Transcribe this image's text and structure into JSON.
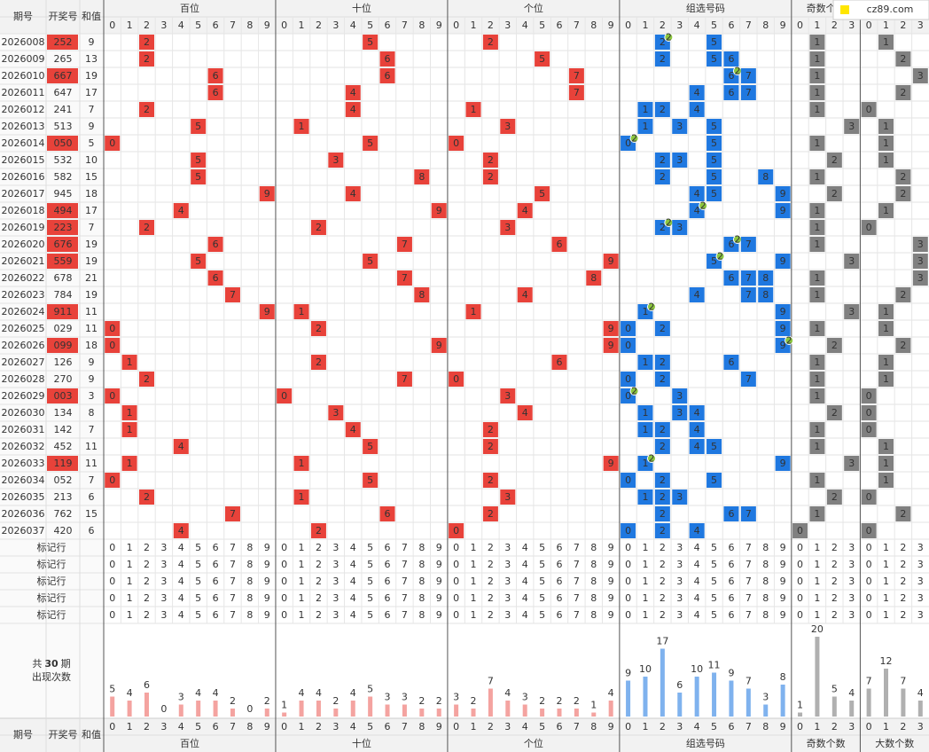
{
  "logo": "cz89.com",
  "headers": {
    "issue": "期号",
    "number": "开奖号",
    "sum": "和值"
  },
  "groups": [
    {
      "name": "百位",
      "counts": [
        5,
        4,
        6,
        0,
        3,
        4,
        4,
        2,
        0,
        2
      ]
    },
    {
      "name": "十位",
      "counts": [
        1,
        4,
        4,
        2,
        4,
        5,
        3,
        3,
        2,
        2
      ]
    },
    {
      "name": "个位",
      "counts": [
        3,
        2,
        7,
        4,
        3,
        2,
        2,
        2,
        1,
        4
      ]
    },
    {
      "name": "组选号码",
      "counts": [
        9,
        10,
        17,
        6,
        10,
        11,
        9,
        7,
        3,
        8
      ]
    },
    {
      "name": "奇数个数",
      "counts": [
        1,
        20,
        5,
        4
      ]
    },
    {
      "name": "大数个数",
      "counts": [
        7,
        12,
        7,
        4
      ]
    }
  ],
  "digit_labels": [
    0,
    1,
    2,
    3,
    4,
    5,
    6,
    7,
    8,
    9
  ],
  "count_labels": [
    0,
    1,
    2,
    3
  ],
  "pair_badge": "2",
  "rows": [
    {
      "issue": "2026008",
      "number": "252",
      "sum": 9,
      "digits": [
        2,
        5,
        2
      ],
      "odd": 1,
      "big": 1
    },
    {
      "issue": "2026009",
      "number": "265",
      "sum": 13,
      "digits": [
        2,
        6,
        5
      ],
      "odd": 1,
      "big": 2
    },
    {
      "issue": "2026010",
      "number": "667",
      "sum": 19,
      "digits": [
        6,
        6,
        7
      ],
      "odd": 1,
      "big": 3
    },
    {
      "issue": "2026011",
      "number": "647",
      "sum": 17,
      "digits": [
        6,
        4,
        7
      ],
      "odd": 1,
      "big": 2
    },
    {
      "issue": "2026012",
      "number": "241",
      "sum": 7,
      "digits": [
        2,
        4,
        1
      ],
      "odd": 1,
      "big": 0
    },
    {
      "issue": "2026013",
      "number": "513",
      "sum": 9,
      "digits": [
        5,
        1,
        3
      ],
      "odd": 3,
      "big": 1
    },
    {
      "issue": "2026014",
      "number": "050",
      "sum": 5,
      "digits": [
        0,
        5,
        0
      ],
      "odd": 1,
      "big": 1
    },
    {
      "issue": "2026015",
      "number": "532",
      "sum": 10,
      "digits": [
        5,
        3,
        2
      ],
      "odd": 2,
      "big": 1
    },
    {
      "issue": "2026016",
      "number": "582",
      "sum": 15,
      "digits": [
        5,
        8,
        2
      ],
      "odd": 1,
      "big": 2
    },
    {
      "issue": "2026017",
      "number": "945",
      "sum": 18,
      "digits": [
        9,
        4,
        5
      ],
      "odd": 2,
      "big": 2
    },
    {
      "issue": "2026018",
      "number": "494",
      "sum": 17,
      "digits": [
        4,
        9,
        4
      ],
      "odd": 1,
      "big": 1
    },
    {
      "issue": "2026019",
      "number": "223",
      "sum": 7,
      "digits": [
        2,
        2,
        3
      ],
      "odd": 1,
      "big": 0
    },
    {
      "issue": "2026020",
      "number": "676",
      "sum": 19,
      "digits": [
        6,
        7,
        6
      ],
      "odd": 1,
      "big": 3
    },
    {
      "issue": "2026021",
      "number": "559",
      "sum": 19,
      "digits": [
        5,
        5,
        9
      ],
      "odd": 3,
      "big": 3
    },
    {
      "issue": "2026022",
      "number": "678",
      "sum": 21,
      "digits": [
        6,
        7,
        8
      ],
      "odd": 1,
      "big": 3
    },
    {
      "issue": "2026023",
      "number": "784",
      "sum": 19,
      "digits": [
        7,
        8,
        4
      ],
      "odd": 1,
      "big": 2
    },
    {
      "issue": "2026024",
      "number": "911",
      "sum": 11,
      "digits": [
        9,
        1,
        1
      ],
      "odd": 3,
      "big": 1
    },
    {
      "issue": "2026025",
      "number": "029",
      "sum": 11,
      "digits": [
        0,
        2,
        9
      ],
      "odd": 1,
      "big": 1
    },
    {
      "issue": "2026026",
      "number": "099",
      "sum": 18,
      "digits": [
        0,
        9,
        9
      ],
      "odd": 2,
      "big": 2
    },
    {
      "issue": "2026027",
      "number": "126",
      "sum": 9,
      "digits": [
        1,
        2,
        6
      ],
      "odd": 1,
      "big": 1
    },
    {
      "issue": "2026028",
      "number": "270",
      "sum": 9,
      "digits": [
        2,
        7,
        0
      ],
      "odd": 1,
      "big": 1
    },
    {
      "issue": "2026029",
      "number": "003",
      "sum": 3,
      "digits": [
        0,
        0,
        3
      ],
      "odd": 1,
      "big": 0
    },
    {
      "issue": "2026030",
      "number": "134",
      "sum": 8,
      "digits": [
        1,
        3,
        4
      ],
      "odd": 2,
      "big": 0
    },
    {
      "issue": "2026031",
      "number": "142",
      "sum": 7,
      "digits": [
        1,
        4,
        2
      ],
      "odd": 1,
      "big": 0
    },
    {
      "issue": "2026032",
      "number": "452",
      "sum": 11,
      "digits": [
        4,
        5,
        2
      ],
      "odd": 1,
      "big": 1
    },
    {
      "issue": "2026033",
      "number": "119",
      "sum": 11,
      "digits": [
        1,
        1,
        9
      ],
      "odd": 3,
      "big": 1
    },
    {
      "issue": "2026034",
      "number": "052",
      "sum": 7,
      "digits": [
        0,
        5,
        2
      ],
      "odd": 1,
      "big": 1
    },
    {
      "issue": "2026035",
      "number": "213",
      "sum": 6,
      "digits": [
        2,
        1,
        3
      ],
      "odd": 2,
      "big": 0
    },
    {
      "issue": "2026036",
      "number": "762",
      "sum": 15,
      "digits": [
        7,
        6,
        2
      ],
      "odd": 1,
      "big": 2
    },
    {
      "issue": "2026037",
      "number": "420",
      "sum": 6,
      "digits": [
        4,
        2,
        0
      ],
      "odd": 0,
      "big": 0
    }
  ],
  "marker_rows": [
    "标记行",
    "标记行",
    "标记行",
    "标记行",
    "标记行"
  ],
  "stats": {
    "prefix": "共",
    "periods": 30,
    "suffix": "期",
    "caption": "出现次数"
  }
}
